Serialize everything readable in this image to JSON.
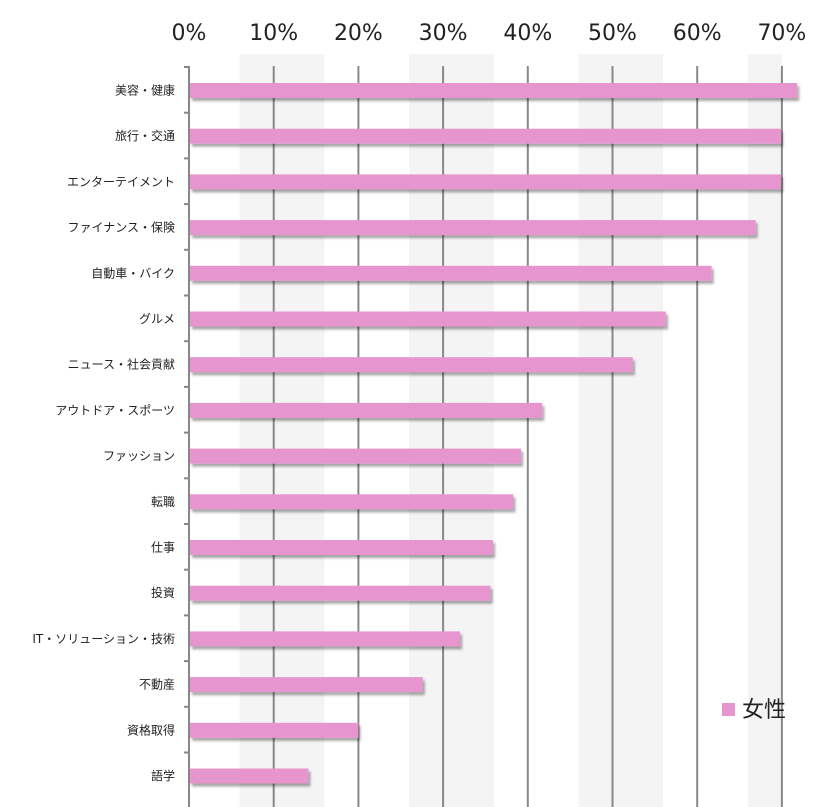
{
  "chart_data": {
    "type": "bar",
    "orientation": "horizontal",
    "categories": [
      "美容・健康",
      "旅行・交通",
      "エンターテイメント",
      "ファイナンス・保険",
      "自動車・バイク",
      "グルメ",
      "ニュース・社会貢献",
      "アウトドア・スポーツ",
      "ファッション",
      "転職",
      "仕事",
      "投資",
      "IT・ソリューション・技術",
      "不動産",
      "資格取得",
      "語学"
    ],
    "series": [
      {
        "name": "女性",
        "color": "#e795cf",
        "values": [
          71.8,
          69.9,
          69.9,
          66.9,
          61.7,
          56.3,
          52.4,
          41.7,
          39.2,
          38.3,
          35.9,
          35.6,
          32.0,
          27.6,
          20.0,
          14.1
        ]
      }
    ],
    "xlim": [
      0,
      74
    ],
    "xticks": [
      0,
      10,
      20,
      30,
      40,
      50,
      60,
      70
    ],
    "xtick_labels": [
      "0%",
      "10%",
      "20%",
      "30%",
      "40%",
      "50%",
      "60%",
      "70%"
    ],
    "x_axis_position": "top",
    "grid": true,
    "legend_position": "bottom-right",
    "title": "",
    "xlabel": "",
    "ylabel": ""
  }
}
